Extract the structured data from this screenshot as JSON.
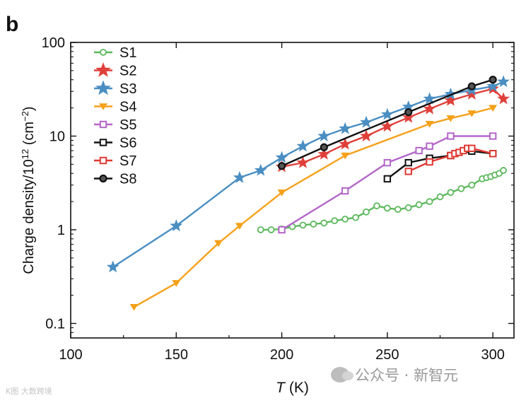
{
  "panel_label": "b",
  "watermark": {
    "main": "公众号 · 新智元",
    "small": "K图 大数跨境"
  },
  "chart_data": {
    "type": "line",
    "title": "",
    "xlabel_italic": "T",
    "xlabel_unit": "(K)",
    "ylabel": "Charge density/10",
    "ylabel_sup": "12",
    "ylabel_unit_pre": " (cm",
    "ylabel_unit_sup": "−2",
    "ylabel_unit_post": ")",
    "xlim": [
      100,
      310
    ],
    "ylim": [
      0.07,
      100
    ],
    "yscale": "log",
    "xticks": [
      100,
      150,
      200,
      250,
      300
    ],
    "xtick_labels": [
      "100",
      "150",
      "200",
      "250",
      "300"
    ],
    "yticks": [
      0.1,
      1,
      10,
      100
    ],
    "ytick_labels": [
      "0.1",
      "1",
      "10",
      "100"
    ],
    "legend_position": "top-left",
    "series": [
      {
        "name": "S1",
        "color": "#5cb85c",
        "marker": "circle-open",
        "x": [
          190,
          195,
          200,
          205,
          210,
          215,
          220,
          225,
          230,
          235,
          240,
          245,
          250,
          255,
          260,
          265,
          270,
          275,
          280,
          285,
          290,
          295,
          297,
          299,
          301,
          303,
          305
        ],
        "y": [
          1.0,
          1.0,
          1.02,
          1.08,
          1.12,
          1.15,
          1.18,
          1.25,
          1.3,
          1.35,
          1.55,
          1.8,
          1.7,
          1.65,
          1.72,
          1.85,
          2.0,
          2.25,
          2.5,
          2.75,
          3.0,
          3.5,
          3.6,
          3.7,
          3.85,
          4.0,
          4.3
        ]
      },
      {
        "name": "S2",
        "color": "#e0403a",
        "marker": "star",
        "x": [
          200,
          210,
          220,
          230,
          240,
          250,
          260,
          270,
          280,
          290,
          300,
          305
        ],
        "y": [
          4.7,
          5.2,
          6.4,
          8.2,
          10.0,
          12.7,
          15.8,
          19.5,
          24.0,
          28.0,
          32.0,
          25.0
        ]
      },
      {
        "name": "S3",
        "color": "#4a8ec2",
        "marker": "star",
        "x": [
          120,
          150,
          180,
          190,
          200,
          210,
          220,
          230,
          240,
          250,
          260,
          270,
          280,
          290,
          300,
          305
        ],
        "y": [
          0.4,
          1.1,
          3.6,
          4.3,
          5.9,
          7.8,
          10.0,
          12.0,
          14.0,
          17.0,
          20.5,
          25.0,
          28.0,
          31.0,
          34.0,
          38.0
        ]
      },
      {
        "name": "S4",
        "color": "#f5a11a",
        "marker": "triangle-down",
        "x": [
          130,
          150,
          170,
          180,
          200,
          230,
          270,
          280,
          290,
          300
        ],
        "y": [
          0.15,
          0.27,
          0.72,
          1.1,
          2.5,
          6.2,
          13.5,
          15.5,
          17.5,
          20.0
        ]
      },
      {
        "name": "S5",
        "color": "#b366c8",
        "marker": "square-open",
        "x": [
          200,
          230,
          250,
          265,
          270,
          280,
          300
        ],
        "y": [
          1.0,
          2.6,
          5.2,
          7.0,
          7.8,
          10.0,
          10.0
        ]
      },
      {
        "name": "S6",
        "color": "#111111",
        "marker": "square-open",
        "x": [
          250,
          260,
          270,
          280,
          290,
          300
        ],
        "y": [
          3.5,
          5.2,
          5.8,
          6.2,
          6.9,
          6.5
        ]
      },
      {
        "name": "S7",
        "color": "#dd3a32",
        "marker": "square-open",
        "x": [
          260,
          270,
          280,
          282,
          284,
          286,
          288,
          290,
          300
        ],
        "y": [
          4.2,
          5.3,
          6.2,
          6.5,
          6.7,
          7.0,
          7.4,
          7.4,
          6.5
        ]
      },
      {
        "name": "S8",
        "color": "#111111",
        "marker": "circle-filled",
        "x": [
          200,
          220,
          260,
          290,
          300
        ],
        "y": [
          4.8,
          7.6,
          18.0,
          34.0,
          40.0
        ]
      }
    ]
  }
}
